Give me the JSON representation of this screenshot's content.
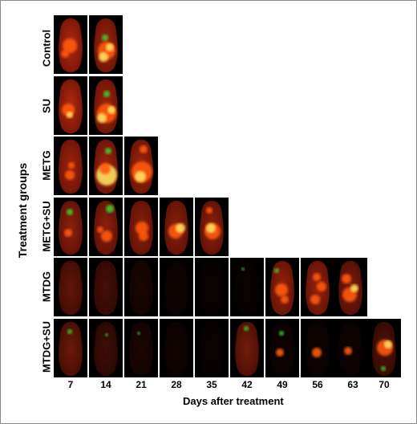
{
  "figure": {
    "y_axis_label": "Treatment groups",
    "x_axis_label": "Days after treatment",
    "days": [
      "7",
      "14",
      "21",
      "28",
      "35",
      "42",
      "49",
      "56",
      "63",
      "70"
    ],
    "groups": [
      {
        "label": "Control",
        "images": 2
      },
      {
        "label": "SU",
        "images": 2
      },
      {
        "label": "METG",
        "images": 3
      },
      {
        "label": "METG+SU",
        "images": 5
      },
      {
        "label": "MTDG",
        "images": 9
      },
      {
        "label": "MTDG+SU",
        "images": 10
      }
    ],
    "colors": {
      "mouse_body": "#7a1608",
      "tumor": "#ff5a10",
      "hot": "#ffe060",
      "gfp": "#3ccc30",
      "background": "#000000"
    }
  }
}
